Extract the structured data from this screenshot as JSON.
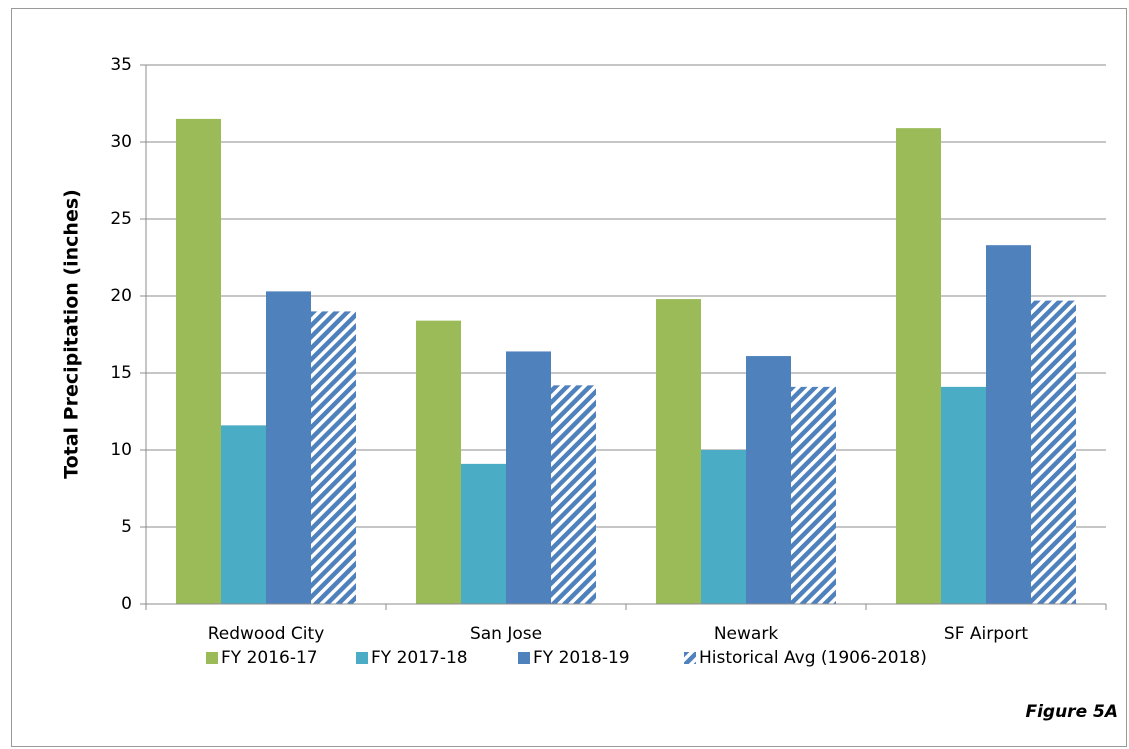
{
  "chart_data": {
    "type": "bar",
    "y_label": "Total Precipitation (inches)",
    "annotation": "Figure 5A",
    "categories": [
      "Redwood City",
      "San Jose",
      "Newark",
      "SF Airport"
    ],
    "series": [
      {
        "name": "FY 2016-17",
        "color": "#9bbb59",
        "values": [
          31.5,
          18.4,
          19.8,
          30.9
        ]
      },
      {
        "name": "FY 2017-18",
        "color": "#4bacc6",
        "values": [
          11.6,
          9.1,
          10.0,
          14.1
        ]
      },
      {
        "name": "FY 2018-19",
        "color": "#4f81bd",
        "values": [
          20.3,
          16.4,
          16.1,
          23.3
        ]
      },
      {
        "name": "Historical Avg (1906-2018)",
        "color": "#4f81bd",
        "pattern": "diagonal",
        "values": [
          19.0,
          14.2,
          14.1,
          19.7
        ]
      }
    ],
    "ylim": [
      0,
      35
    ],
    "yticks": [
      0,
      5,
      10,
      15,
      20,
      25,
      30,
      35
    ],
    "grid": true,
    "legend": "bottom"
  }
}
